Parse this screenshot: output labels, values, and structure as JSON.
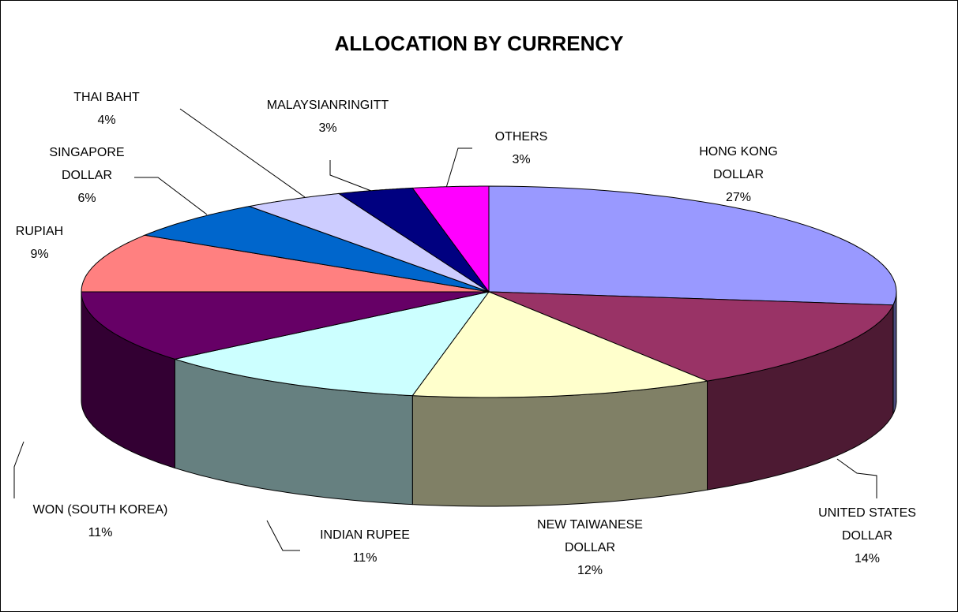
{
  "chart_data": {
    "type": "pie",
    "title": "ALLOCATION BY CURRENCY",
    "categories": [
      "HONG KONG DOLLAR",
      "UNITED STATES DOLLAR",
      "NEW TAIWANESE DOLLAR",
      "INDIAN RUPEE",
      "WON (SOUTH KOREA)",
      "RUPIAH",
      "SINGAPORE DOLLAR",
      "THAI BAHT",
      "MALAYSIANRINGITT",
      "OTHERS"
    ],
    "values": [
      27,
      14,
      12,
      11,
      11,
      9,
      6,
      4,
      3,
      3
    ],
    "value_labels": [
      "27%",
      "14%",
      "12%",
      "11%",
      "11%",
      "9%",
      "6%",
      "4%",
      "3%",
      "3%"
    ],
    "colors": [
      "#9999ff",
      "#993366",
      "#ffffcc",
      "#ccffff",
      "#660066",
      "#ff8080",
      "#0066cc",
      "#ccccff",
      "#000080",
      "#ff00ff"
    ]
  }
}
